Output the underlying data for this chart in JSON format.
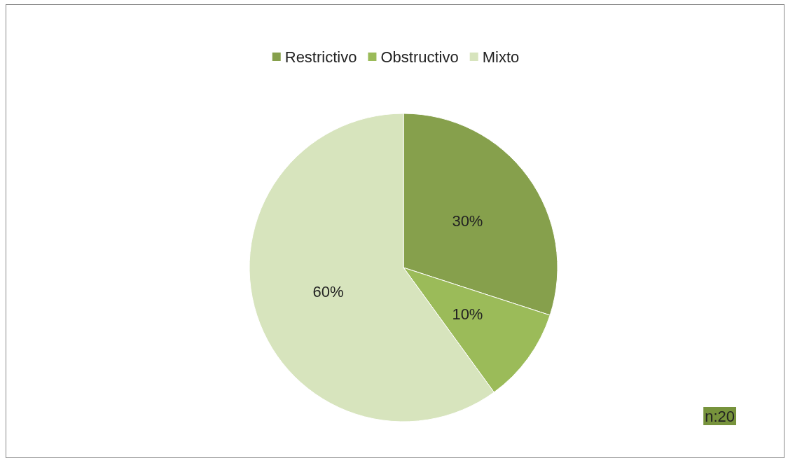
{
  "chart_data": {
    "type": "pie",
    "categories": [
      "Restrictivo",
      "Obstructivo",
      "Mixto"
    ],
    "values": [
      30,
      10,
      60
    ],
    "value_labels": [
      "30%",
      "10%",
      "60%"
    ],
    "colors": [
      "#86a04c",
      "#9bbb59",
      "#d7e4bd"
    ],
    "legend": "top",
    "annotations": [
      "n:20"
    ]
  }
}
